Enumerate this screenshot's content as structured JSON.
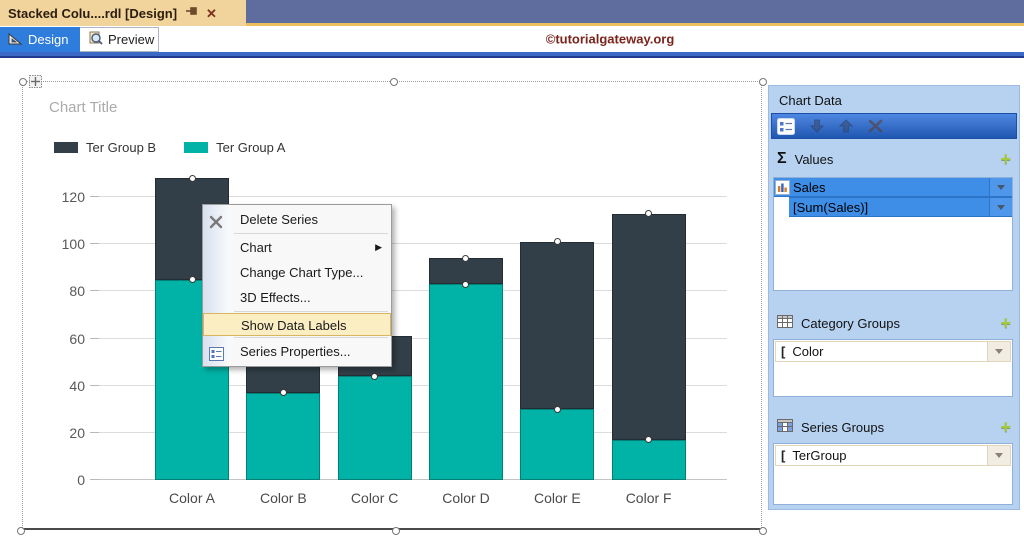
{
  "window": {
    "doc_tab_title": "Stacked Colu....rdl [Design]",
    "design_tab": "Design",
    "preview_tab": "Preview",
    "watermark": "©tutorialgateway.org"
  },
  "chart_data": {
    "type": "bar",
    "stacked": true,
    "title": "Chart Title",
    "categories": [
      "Color A",
      "Color B",
      "Color C",
      "Color D",
      "Color E",
      "Color F"
    ],
    "series": [
      {
        "name": "Ter Group A",
        "color": "#00B3A6",
        "values": [
          85,
          37,
          44,
          83,
          30,
          17
        ]
      },
      {
        "name": "Ter Group B",
        "color": "#323F48",
        "values": [
          43,
          13,
          17,
          11,
          71,
          96
        ]
      }
    ],
    "legend_items": [
      {
        "label": "Ter Group B",
        "color": "#323F48"
      },
      {
        "label": "Ter Group A",
        "color": "#00B3A6"
      }
    ],
    "y_ticks": [
      0,
      20,
      40,
      60,
      80,
      100,
      120
    ],
    "ylim": [
      0,
      130
    ],
    "grid": true,
    "legend_position": "top-left"
  },
  "context_menu": {
    "items": [
      {
        "label": "Delete Series"
      },
      {
        "label": "Chart"
      },
      {
        "label": "Change Chart Type..."
      },
      {
        "label": "3D Effects..."
      },
      {
        "label": "Show Data Labels"
      },
      {
        "label": "Series Properties..."
      }
    ]
  },
  "chart_data_panel": {
    "title": "Chart Data",
    "values_label": "Values",
    "values_rows": [
      {
        "label": "Sales"
      },
      {
        "label": "[Sum(Sales)]"
      }
    ],
    "category_label": "Category Groups",
    "category_rows": [
      {
        "label": "Color"
      }
    ],
    "series_label": "Series Groups",
    "series_rows": [
      {
        "label": "TerGroup"
      }
    ],
    "accent_plus_color": "#A6C83C"
  }
}
